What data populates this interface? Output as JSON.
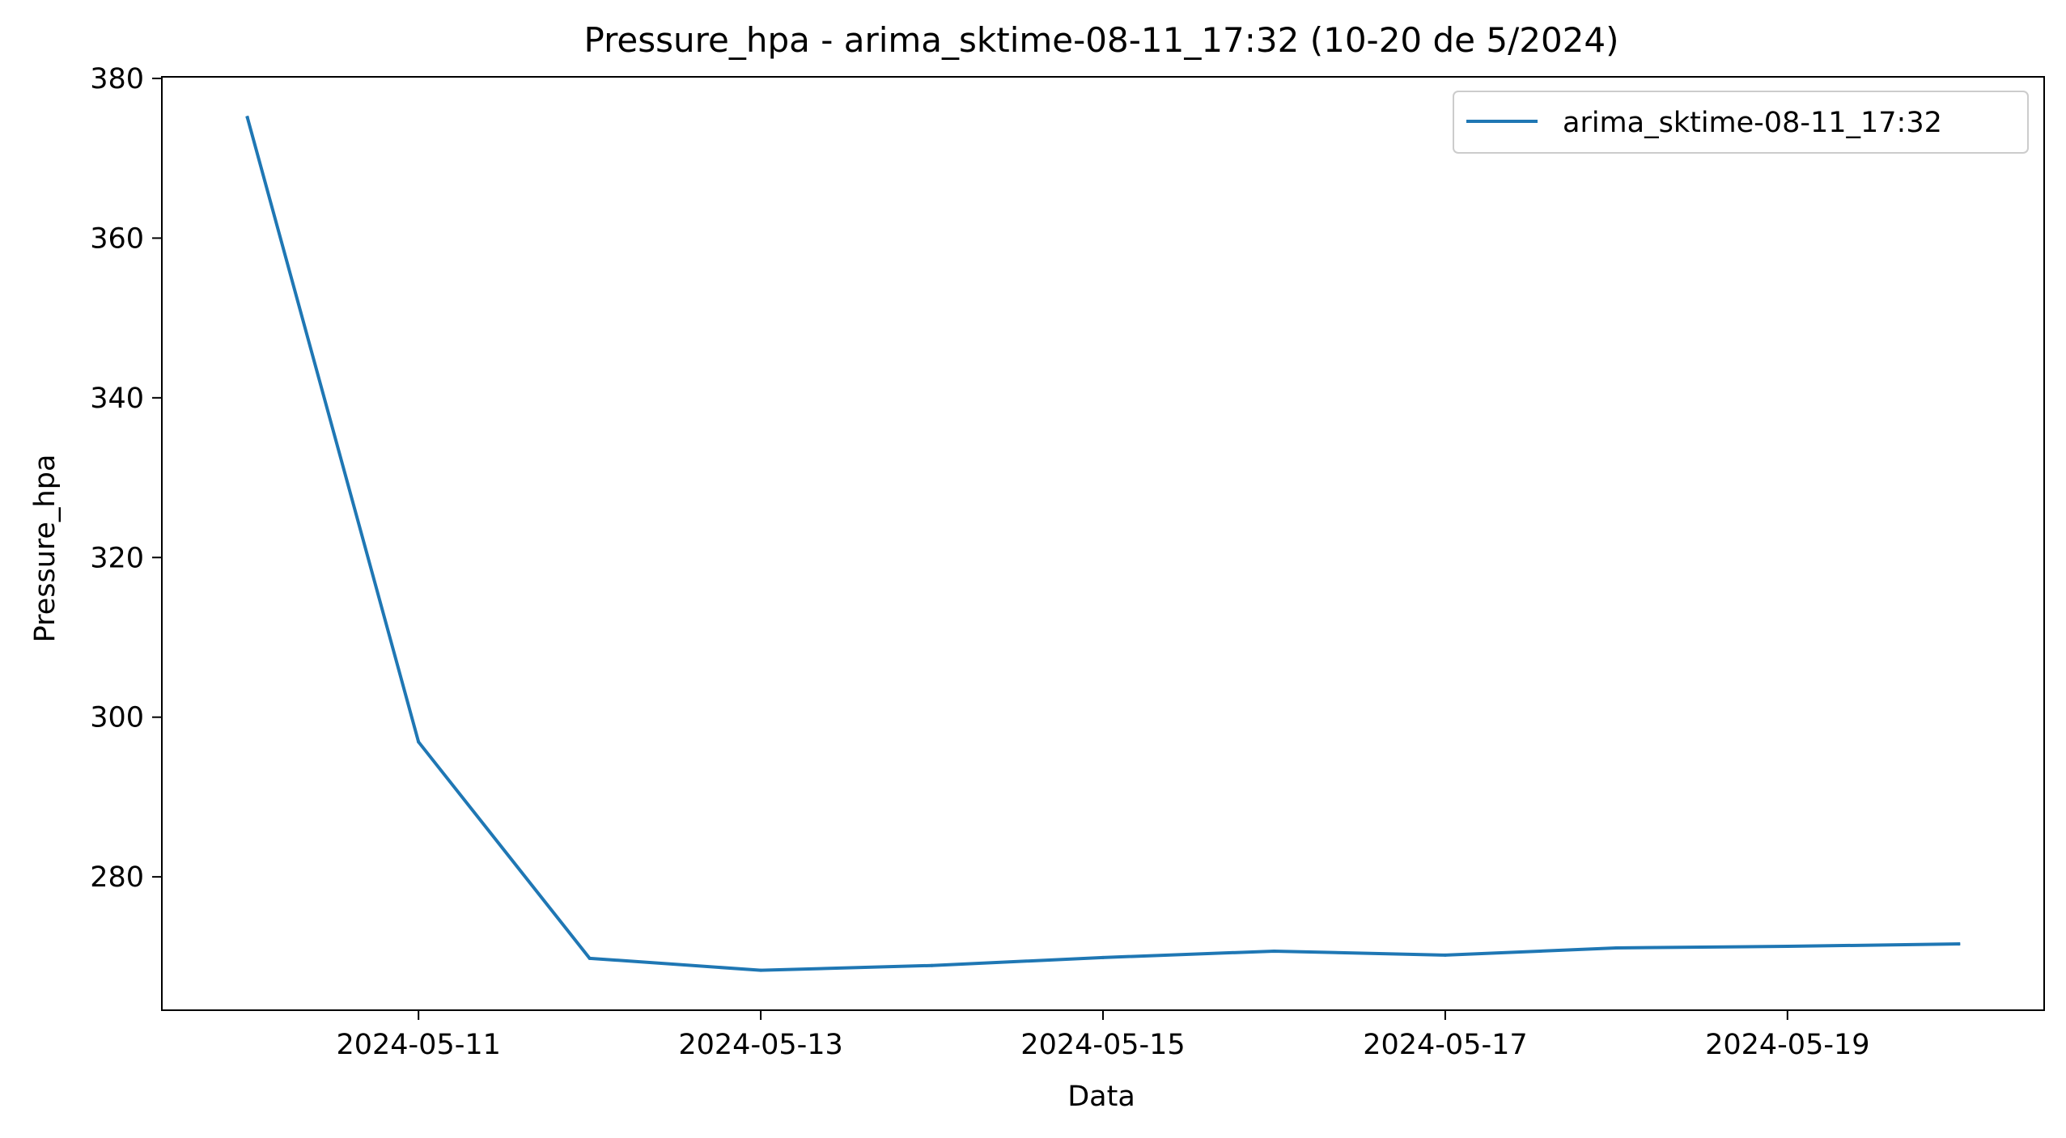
{
  "chart_data": {
    "type": "line",
    "title": "Pressure_hpa - arima_sktime-08-11_17:32 (10-20 de 5/2024)",
    "xlabel": "Data",
    "ylabel": "Pressure_hpa",
    "x": [
      "2024-05-10",
      "2024-05-11",
      "2024-05-12",
      "2024-05-13",
      "2024-05-14",
      "2024-05-15",
      "2024-05-16",
      "2024-05-17",
      "2024-05-18",
      "2024-05-19",
      "2024-05-20"
    ],
    "x_ticks": [
      "2024-05-11",
      "2024-05-13",
      "2024-05-15",
      "2024-05-17",
      "2024-05-19"
    ],
    "xlim": [
      "2024-05-09 12:00",
      "2024-05-20 12:00"
    ],
    "y_ticks": [
      280,
      300,
      320,
      340,
      360,
      380
    ],
    "ylim": [
      263.3,
      380.2
    ],
    "grid": false,
    "legend_position": "upper right",
    "series": [
      {
        "name": "arima_sktime-08-11_17:32",
        "color": "#1f77b4",
        "values": [
          375.1,
          296.9,
          269.8,
          268.3,
          268.9,
          269.9,
          270.7,
          270.2,
          271.1,
          271.3,
          271.6
        ]
      }
    ]
  }
}
